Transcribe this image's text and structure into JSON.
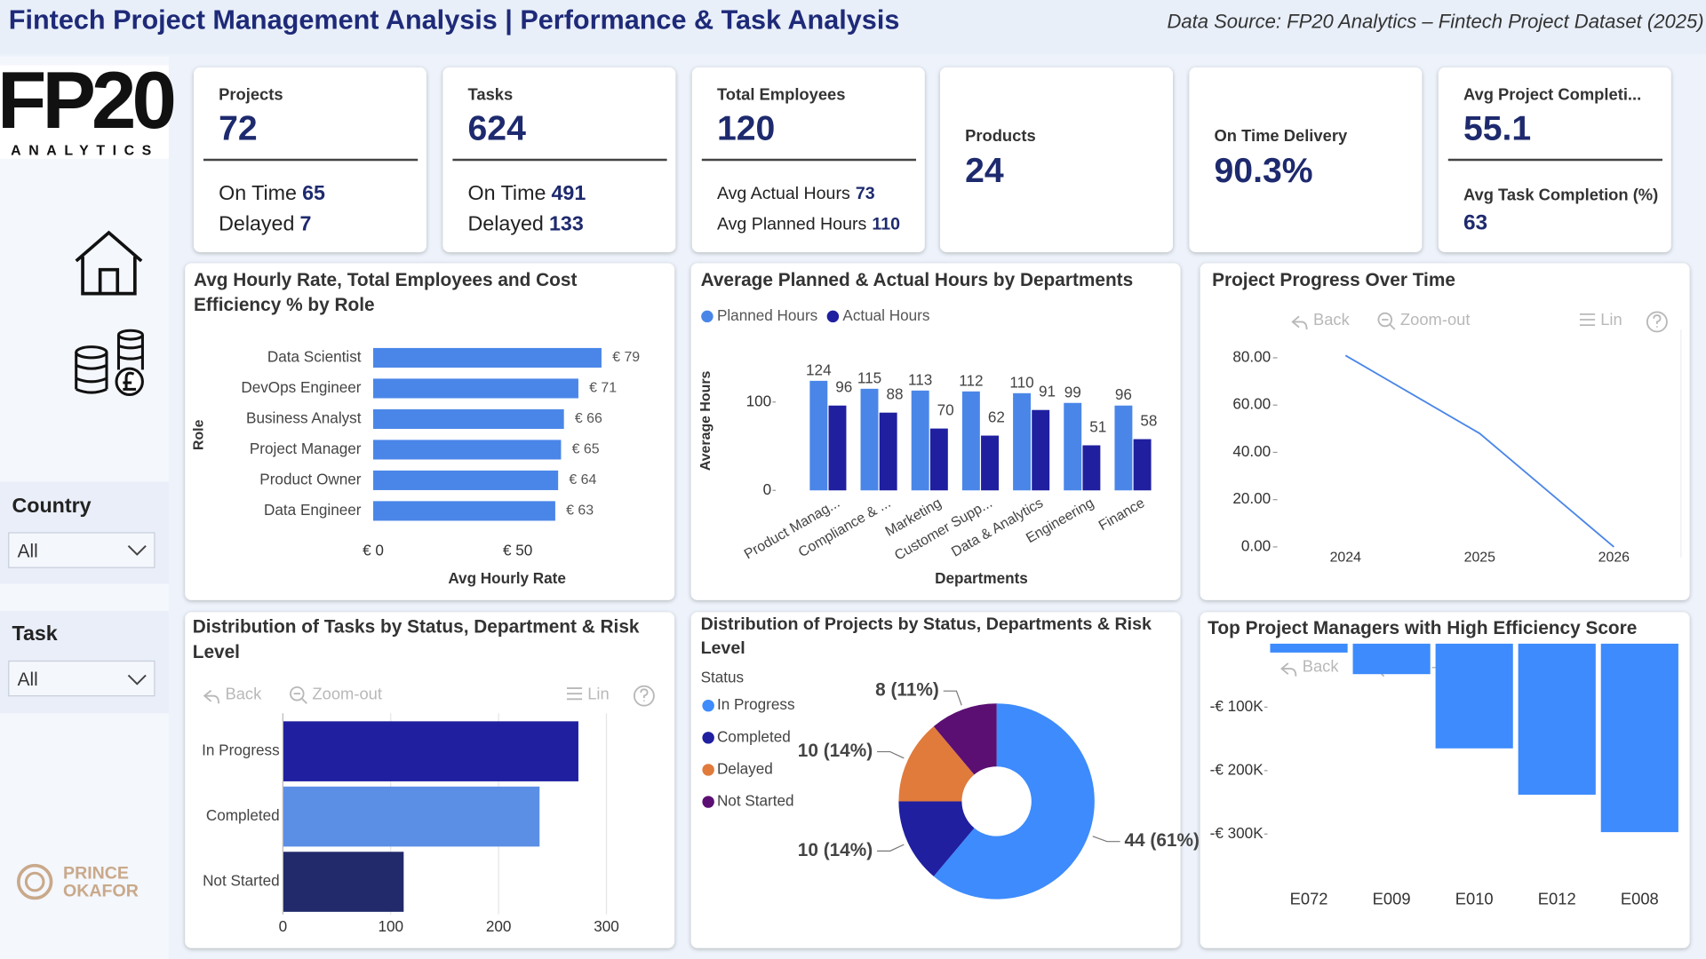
{
  "header": {
    "title": "Fintech Project Management Analysis | Performance & Task Analysis",
    "source": "Data Source: FP20 Analytics – Fintech Project Dataset (2025)"
  },
  "logo": {
    "name": "FP20",
    "tagline": "ANALYTICS"
  },
  "author": [
    "PRINCE",
    "OKAFOR"
  ],
  "kpis": [
    {
      "label": "Projects",
      "value": 72,
      "details": [
        {
          "label": "On Time",
          "value": 65
        },
        {
          "label": "Delayed",
          "value": 7
        }
      ]
    },
    {
      "label": "Tasks",
      "value": 624,
      "details": [
        {
          "label": "On Time",
          "value": 491
        },
        {
          "label": "Delayed",
          "value": 133
        }
      ]
    },
    {
      "label": "Total Employees",
      "value": 120,
      "details": [
        {
          "label": "Avg Actual Hours",
          "value": 73
        },
        {
          "label": "Avg Planned Hours",
          "value": 110
        }
      ]
    },
    {
      "label": "Products",
      "value": 24
    },
    {
      "label": "On Time Delivery",
      "value": "90.3%"
    },
    {
      "label": "Avg Project Completi...",
      "value": 55.1,
      "details": [
        {
          "label": "Avg Task Completion (%)",
          "value": 63
        }
      ]
    }
  ],
  "filters": [
    {
      "label": "Country",
      "value": "All"
    },
    {
      "label": "Task",
      "value": "All"
    }
  ],
  "toolbar": {
    "back": "Back",
    "zoom_out": "Zoom-out",
    "scale": "Lin"
  },
  "chart_data": [
    {
      "type": "bar",
      "orientation": "horizontal",
      "title": "Avg Hourly Rate, Total Employees and Cost Efficiency % by Role",
      "x_label": "Avg Hourly Rate",
      "y_label": "Role",
      "categories": [
        "Data Scientist",
        "DevOps Engineer",
        "Business Analyst",
        "Project Manager",
        "Product Owner",
        "Data Engineer"
      ],
      "values": [
        79,
        71,
        66,
        65,
        64,
        63
      ],
      "value_labels": [
        "€ 79",
        "€ 71",
        "€ 66",
        "€ 65",
        "€ 64",
        "€ 63"
      ],
      "color": "#4a86e8",
      "xlim": [
        0,
        96
      ],
      "xticks": [
        {
          "value": 0,
          "label": "€ 0"
        },
        {
          "value": 50,
          "label": "€ 50"
        }
      ],
      "grid": false
    },
    {
      "type": "bar",
      "orientation": "vertical",
      "title": "Average Planned & Actual Hours by Departments",
      "x_label": "Departments",
      "y_label": "Average Hours",
      "categories": [
        "Product Manag...",
        "Compliance & ...",
        "Marketing",
        "Customer Supp...",
        "Data & Analytics",
        "Engineering",
        "Finance"
      ],
      "series": [
        {
          "name": "Planned Hours",
          "color": "#4a86e8",
          "values": [
            124,
            115,
            113,
            112,
            110,
            99,
            96
          ]
        },
        {
          "name": "Actual Hours",
          "color": "#1f1fa0",
          "values": [
            96,
            88,
            70,
            62,
            91,
            51,
            58
          ]
        }
      ],
      "ylim": [
        0,
        160
      ],
      "yticks": [
        0,
        100
      ],
      "grid": false,
      "legend": "top-left"
    },
    {
      "type": "line",
      "title": "Project Progress Over Time",
      "x": [
        2024,
        2025,
        2026
      ],
      "values": [
        81,
        48,
        0
      ],
      "color": "#4a86e8",
      "xlim": [
        2023.5,
        2026.5
      ],
      "xticks": [
        2024,
        2025,
        2026
      ],
      "ylim": [
        0,
        92
      ],
      "yticks": [
        {
          "value": 0,
          "label": "0.00"
        },
        {
          "value": 20,
          "label": "20.00"
        },
        {
          "value": 40,
          "label": "40.00"
        },
        {
          "value": 60,
          "label": "60.00"
        },
        {
          "value": 80,
          "label": "80.00"
        }
      ],
      "grid": false
    },
    {
      "type": "bar",
      "orientation": "horizontal",
      "title": "Distribution of Tasks by Status, Department & Risk Level",
      "categories": [
        "In Progress",
        "Completed",
        "Not Started"
      ],
      "values": [
        274,
        238,
        112
      ],
      "colors": [
        "#1f1fa0",
        "#5b8fe6",
        "#222a6b"
      ],
      "xlim": [
        0,
        343
      ],
      "xticks": [
        0,
        100,
        200,
        300
      ],
      "grid": true
    },
    {
      "type": "donut",
      "title": "Distribution of Projects by Status, Departments & Risk Level",
      "legend_title": "Status",
      "categories": [
        "In Progress",
        "Completed",
        "Delayed",
        "Not Started"
      ],
      "values": [
        44,
        10,
        10,
        8
      ],
      "value_labels": [
        "44 (61%)",
        "10 (14%)",
        "10 (14%)",
        "8 (11%)"
      ],
      "colors": [
        "#3d8bfd",
        "#1f1fa0",
        "#e07b3c",
        "#5b0f73"
      ]
    },
    {
      "type": "bar",
      "orientation": "vertical",
      "title": "Top Project Managers with High Efficiency Score",
      "categories": [
        "E072",
        "E009",
        "E010",
        "E012",
        "E008"
      ],
      "values": [
        -14000,
        -48000,
        -165000,
        -238000,
        -297000
      ],
      "color": "#3d8bfd",
      "ylim": [
        -365000,
        0
      ],
      "yticks": [
        {
          "value": -100000,
          "label": "-€ 100K"
        },
        {
          "value": -200000,
          "label": "-€ 200K"
        },
        {
          "value": -300000,
          "label": "-€ 300K"
        }
      ],
      "grid": false
    }
  ]
}
